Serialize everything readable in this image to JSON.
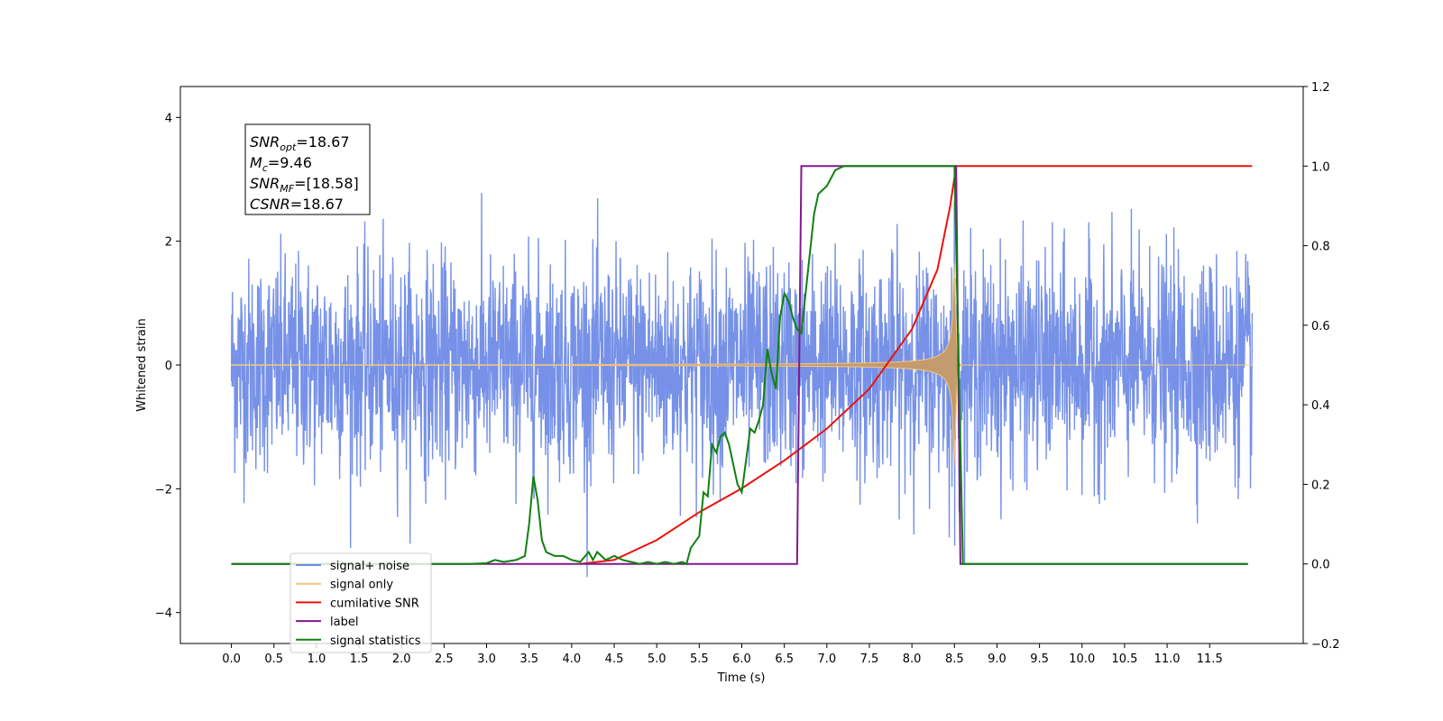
{
  "chart_data": {
    "type": "line",
    "xlabel": "Time (s)",
    "ylabel": "Whitened strain",
    "x_ticks": [
      "0.0",
      "0.5",
      "1.0",
      "1.5",
      "2.0",
      "2.5",
      "3.0",
      "3.5",
      "4.0",
      "4.5",
      "5.0",
      "5.5",
      "6.0",
      "6.5",
      "7.0",
      "7.5",
      "8.0",
      "8.5",
      "9.0",
      "9.5",
      "10.0",
      "10.5",
      "11.0",
      "11.5"
    ],
    "y_left_ticks": [
      "−4",
      "−2",
      "0",
      "2",
      "4"
    ],
    "y_right_ticks": [
      "−0.2",
      "0.0",
      "0.2",
      "0.4",
      "0.6",
      "0.8",
      "1.0",
      "1.2"
    ],
    "xlim": [
      -0.6,
      12.6
    ],
    "ylim_left": [
      -4.5,
      4.5
    ],
    "ylim_right": [
      -0.2,
      1.2
    ],
    "grid": false,
    "legend_position": "lower-left",
    "annotation": {
      "lines": [
        {
          "var": "SNR",
          "sub": "opt",
          "value": "=18.67"
        },
        {
          "var": "M",
          "sub": "c",
          "value": "=9.46"
        },
        {
          "var": "SNR",
          "sub": "MF",
          "value": "=[18.58]"
        },
        {
          "var": "CSNR",
          "sub": "",
          "value": "=18.67"
        }
      ]
    },
    "series": [
      {
        "name": "signal+ noise",
        "color": "#6f8be6",
        "axis": "left",
        "noise_sigma": 0.85,
        "t_start": 0.0,
        "t_end": 12.0
      },
      {
        "name": "signal only",
        "color": "#f5c77e",
        "axis": "left",
        "merger_time": 8.5,
        "peak_amplitude": 2.9
      },
      {
        "name": "cumilative SNR",
        "color": "#e8140c",
        "axis": "right",
        "x": [
          4.1,
          4.5,
          5.0,
          5.5,
          6.0,
          6.5,
          7.0,
          7.5,
          8.0,
          8.3,
          8.45,
          8.52,
          9.0,
          10.0,
          11.0,
          12.0
        ],
        "y": [
          0.0,
          0.01,
          0.06,
          0.13,
          0.19,
          0.26,
          0.34,
          0.44,
          0.59,
          0.74,
          0.9,
          1.0,
          1.0,
          1.0,
          1.0,
          1.0
        ]
      },
      {
        "name": "label",
        "color": "#7f1a8c",
        "axis": "right",
        "x": [
          0.0,
          6.65,
          6.7,
          8.52,
          8.57,
          11.95
        ],
        "y": [
          0.0,
          0.0,
          1.0,
          1.0,
          0.0,
          0.0
        ]
      },
      {
        "name": "signal statistics",
        "color": "#108010",
        "axis": "right",
        "x": [
          0.0,
          2.8,
          3.0,
          3.1,
          3.2,
          3.35,
          3.45,
          3.5,
          3.55,
          3.6,
          3.65,
          3.7,
          3.8,
          3.9,
          4.0,
          4.1,
          4.2,
          4.25,
          4.3,
          4.35,
          4.4,
          4.5,
          4.6,
          4.7,
          4.8,
          4.9,
          5.0,
          5.1,
          5.2,
          5.3,
          5.35,
          5.4,
          5.5,
          5.55,
          5.6,
          5.65,
          5.7,
          5.75,
          5.8,
          5.85,
          5.9,
          5.95,
          6.0,
          6.1,
          6.15,
          6.2,
          6.25,
          6.3,
          6.35,
          6.4,
          6.45,
          6.5,
          6.55,
          6.6,
          6.65,
          6.7,
          6.75,
          6.8,
          6.85,
          6.9,
          7.0,
          7.1,
          7.15,
          7.2,
          7.3,
          7.5,
          8.0,
          8.5,
          8.55,
          8.6,
          11.95
        ],
        "y": [
          0.0,
          0.0,
          0.002,
          0.01,
          0.005,
          0.01,
          0.02,
          0.1,
          0.22,
          0.16,
          0.06,
          0.03,
          0.02,
          0.02,
          0.01,
          0.005,
          0.03,
          0.01,
          0.03,
          0.02,
          0.01,
          0.02,
          0.01,
          0.005,
          0.0,
          0.005,
          0.0,
          0.005,
          0.0,
          0.005,
          0.0,
          0.04,
          0.07,
          0.18,
          0.17,
          0.3,
          0.28,
          0.32,
          0.33,
          0.3,
          0.25,
          0.2,
          0.18,
          0.34,
          0.33,
          0.36,
          0.4,
          0.54,
          0.48,
          0.44,
          0.62,
          0.68,
          0.66,
          0.62,
          0.59,
          0.58,
          0.68,
          0.78,
          0.88,
          0.93,
          0.95,
          0.99,
          0.995,
          1.0,
          1.0,
          1.0,
          1.0,
          1.0,
          0.5,
          0.0,
          0.0
        ]
      }
    ]
  }
}
